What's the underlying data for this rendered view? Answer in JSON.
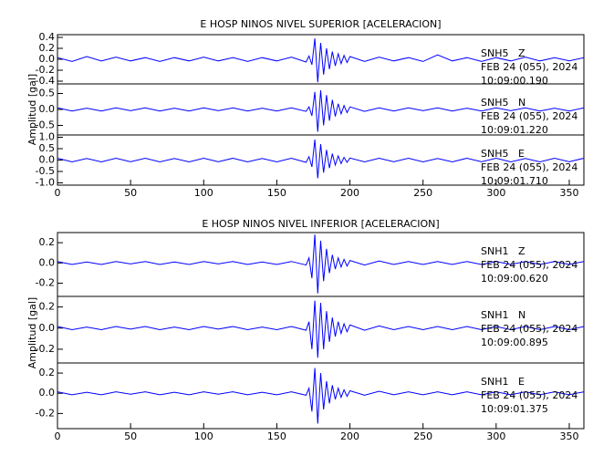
{
  "chart_data": [
    {
      "type": "line",
      "title": "E HOSP NINOS NIVEL SUPERIOR [ACELERACION]",
      "y_label": "Amplitud [gal]",
      "xlim": [
        0,
        360
      ],
      "xticks": [
        0,
        50,
        100,
        150,
        200,
        250,
        300,
        350
      ],
      "x": [
        0,
        10,
        20,
        30,
        40,
        50,
        60,
        70,
        80,
        90,
        100,
        110,
        120,
        130,
        140,
        150,
        160,
        170,
        172,
        174,
        176,
        178,
        180,
        182,
        184,
        186,
        188,
        190,
        192,
        194,
        196,
        198,
        200,
        210,
        220,
        230,
        240,
        250,
        260,
        270,
        280,
        290,
        300,
        310,
        320,
        330,
        340,
        350,
        360
      ],
      "panels": [
        {
          "station": "SNH5   Z",
          "date": "FEB 24 (055), 2024",
          "time": "10:09:00.190",
          "color": "#0000ff",
          "ylim": [
            -0.45,
            0.45
          ],
          "yticks": [
            -0.4,
            -0.2,
            {
              "value": 0,
              "label": "0.0"
            },
            0.2,
            0.4
          ],
          "values": [
            0.03,
            -0.04,
            0.05,
            -0.03,
            0.04,
            -0.03,
            0.03,
            -0.04,
            0.03,
            -0.03,
            0.04,
            -0.03,
            0.03,
            -0.04,
            0.03,
            -0.03,
            0.04,
            -0.05,
            0.06,
            -0.1,
            0.38,
            -0.42,
            0.3,
            -0.28,
            0.2,
            -0.18,
            0.14,
            -0.12,
            0.1,
            -0.08,
            0.07,
            -0.06,
            0.05,
            -0.04,
            0.04,
            -0.03,
            0.03,
            -0.04,
            0.08,
            -0.03,
            0.03,
            -0.04,
            0.03,
            -0.03,
            0.04,
            -0.03,
            0.03,
            -0.03,
            0.03
          ]
        },
        {
          "station": "SNH5   N",
          "date": "FEB 24 (055), 2024",
          "time": "10:09:01.220",
          "color": "#0000ff",
          "ylim": [
            -0.8,
            0.8
          ],
          "yticks": [
            -0.5,
            {
              "value": 0,
              "label": "0.0"
            },
            0.5
          ],
          "values": [
            0.05,
            -0.05,
            0.04,
            -0.05,
            0.05,
            -0.04,
            0.05,
            -0.05,
            0.04,
            -0.05,
            0.05,
            -0.04,
            0.05,
            -0.05,
            0.04,
            -0.05,
            0.05,
            -0.06,
            0.08,
            -0.2,
            0.55,
            -0.7,
            0.6,
            -0.5,
            0.45,
            -0.35,
            0.3,
            -0.22,
            0.18,
            -0.14,
            0.12,
            -0.1,
            0.08,
            -0.06,
            0.05,
            -0.05,
            0.05,
            -0.04,
            0.05,
            -0.05,
            0.04,
            -0.05,
            0.05,
            -0.04,
            0.05,
            -0.05,
            0.04,
            -0.05,
            0.05
          ]
        },
        {
          "station": "SNH5   E",
          "date": "FEB 24 (055), 2024",
          "time": "10:09:01.710",
          "color": "#0000ff",
          "ylim": [
            -1.1,
            1.1
          ],
          "yticks": [
            {
              "value": -1,
              "label": "-1.0"
            },
            -0.5,
            {
              "value": 0,
              "label": "0.0"
            },
            0.5,
            {
              "value": 1,
              "label": "1.0"
            }
          ],
          "values": [
            0.08,
            -0.08,
            0.07,
            -0.08,
            0.08,
            -0.07,
            0.08,
            -0.08,
            0.07,
            -0.08,
            0.08,
            -0.07,
            0.08,
            -0.08,
            0.07,
            -0.08,
            0.08,
            -0.1,
            0.15,
            -0.3,
            0.9,
            -0.8,
            0.7,
            -0.55,
            0.45,
            -0.35,
            0.28,
            -0.22,
            0.18,
            -0.15,
            0.12,
            -0.1,
            0.09,
            -0.08,
            0.08,
            -0.07,
            0.08,
            -0.08,
            0.07,
            -0.08,
            0.08,
            -0.07,
            0.08,
            -0.08,
            0.07,
            -0.08,
            0.08,
            -0.07,
            0.08
          ]
        }
      ]
    },
    {
      "type": "line",
      "title": "E HOSP NINOS NIVEL INFERIOR [ACELERACION]",
      "y_label": "Amplitud [gal]",
      "xlim": [
        0,
        360
      ],
      "xticks": [
        0,
        50,
        100,
        150,
        200,
        250,
        300,
        350
      ],
      "x": [
        0,
        10,
        20,
        30,
        40,
        50,
        60,
        70,
        80,
        90,
        100,
        110,
        120,
        130,
        140,
        150,
        160,
        170,
        172,
        174,
        176,
        178,
        180,
        182,
        184,
        186,
        188,
        190,
        192,
        194,
        196,
        198,
        200,
        210,
        220,
        230,
        240,
        250,
        260,
        270,
        280,
        290,
        300,
        310,
        320,
        330,
        340,
        350,
        360
      ],
      "panels": [
        {
          "station": "SNH1   Z",
          "date": "FEB 24 (055), 2024",
          "time": "10:09:00.620",
          "color": "#0000ff",
          "ylim": [
            -0.33,
            0.3
          ],
          "yticks": [
            -0.2,
            {
              "value": 0,
              "label": "0.0"
            },
            0.2
          ],
          "values": [
            0.015,
            -0.015,
            0.01,
            -0.015,
            0.015,
            -0.01,
            0.015,
            -0.015,
            0.01,
            -0.015,
            0.015,
            -0.01,
            0.015,
            -0.015,
            0.01,
            -0.015,
            0.015,
            -0.02,
            0.05,
            -0.15,
            0.28,
            -0.3,
            0.22,
            -0.18,
            0.14,
            -0.1,
            0.08,
            -0.06,
            0.05,
            -0.04,
            0.035,
            -0.03,
            0.025,
            -0.02,
            0.02,
            -0.015,
            0.015,
            -0.015,
            0.015,
            -0.015,
            0.015,
            -0.015,
            0.015,
            -0.015,
            0.015,
            -0.015,
            0.015,
            -0.015,
            0.015
          ]
        },
        {
          "station": "SNH1   N",
          "date": "FEB 24 (055), 2024",
          "time": "10:09:00.895",
          "color": "#0000ff",
          "ylim": [
            -0.33,
            0.3
          ],
          "yticks": [
            -0.2,
            {
              "value": 0,
              "label": "0.0"
            },
            0.2
          ],
          "values": [
            0.015,
            -0.015,
            0.01,
            -0.015,
            0.015,
            -0.01,
            0.015,
            -0.015,
            0.01,
            -0.015,
            0.015,
            -0.01,
            0.015,
            -0.015,
            0.01,
            -0.015,
            0.015,
            -0.02,
            0.06,
            -0.2,
            0.26,
            -0.28,
            0.24,
            -0.2,
            0.16,
            -0.13,
            0.1,
            -0.08,
            0.06,
            -0.05,
            0.04,
            -0.035,
            0.03,
            -0.02,
            0.02,
            -0.015,
            0.015,
            -0.015,
            0.015,
            -0.015,
            0.015,
            -0.015,
            0.015,
            -0.015,
            0.015,
            -0.015,
            0.015,
            -0.015,
            0.015
          ]
        },
        {
          "station": "SNH1   E",
          "date": "FEB 24 (055), 2024",
          "time": "10:09:01.375",
          "color": "#0000ff",
          "ylim": [
            -0.35,
            0.3
          ],
          "yticks": [
            -0.2,
            {
              "value": 0,
              "label": "0.0"
            },
            0.2
          ],
          "values": [
            0.015,
            -0.015,
            0.01,
            -0.015,
            0.015,
            -0.01,
            0.015,
            -0.015,
            0.01,
            -0.015,
            0.015,
            -0.01,
            0.015,
            -0.015,
            0.01,
            -0.015,
            0.015,
            -0.02,
            0.05,
            -0.18,
            0.25,
            -0.3,
            0.2,
            -0.16,
            0.12,
            -0.1,
            0.08,
            -0.06,
            0.05,
            -0.04,
            0.035,
            -0.03,
            0.025,
            -0.02,
            0.02,
            -0.015,
            0.015,
            -0.015,
            0.015,
            -0.015,
            0.015,
            -0.015,
            0.015,
            -0.015,
            0.015,
            -0.015,
            0.015,
            -0.015,
            0.015
          ]
        }
      ]
    }
  ]
}
